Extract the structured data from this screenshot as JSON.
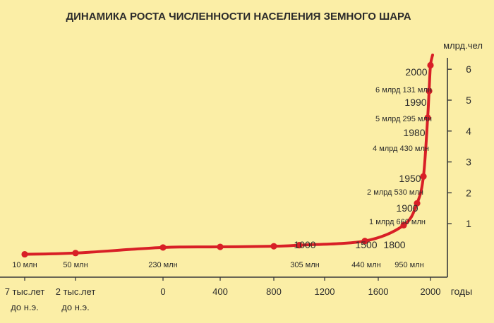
{
  "chart_data": {
    "type": "line",
    "title": "ДИНАМИКА РОСТА ЧИСЛЕННОСТИ НАСЕЛЕНИЯ ЗЕМНОГО ШАРА",
    "ylabel": "млрд.чел",
    "xlabel": "годы",
    "ylim": [
      0,
      7
    ],
    "y_ticks": [
      1,
      2,
      3,
      4,
      5,
      6
    ],
    "x_tick_labels": [
      {
        "x": -7000,
        "label": [
          "7 тыс.лет",
          "до н.э."
        ]
      },
      {
        "x": -2000,
        "label": [
          "2 тыс.лет",
          "до н.э."
        ]
      },
      {
        "x": 0,
        "label": [
          "0"
        ]
      },
      {
        "x": 400,
        "label": [
          "400"
        ]
      },
      {
        "x": 800,
        "label": [
          "800"
        ]
      },
      {
        "x": 1200,
        "label": [
          "1200"
        ]
      },
      {
        "x": 1600,
        "label": [
          "1600"
        ]
      },
      {
        "x": 2000,
        "label": [
          "2000"
        ]
      }
    ],
    "series": [
      {
        "color": "#d81f26",
        "points": [
          {
            "x": -7000,
            "y": 0.01
          },
          {
            "x": -2000,
            "y": 0.05
          },
          {
            "x": 0,
            "y": 0.23
          },
          {
            "x": 400,
            "y": 0.25
          },
          {
            "x": 800,
            "y": 0.27
          },
          {
            "x": 1000,
            "y": 0.305
          },
          {
            "x": 1500,
            "y": 0.44
          },
          {
            "x": 1800,
            "y": 0.95
          },
          {
            "x": 1900,
            "y": 1.66
          },
          {
            "x": 1950,
            "y": 2.53
          },
          {
            "x": 1980,
            "y": 4.43
          },
          {
            "x": 1990,
            "y": 5.295
          },
          {
            "x": 2000,
            "y": 6.131
          }
        ]
      }
    ],
    "annotations": [
      {
        "text": "10 млн",
        "x": -7000,
        "y": 0.01,
        "kind": "value"
      },
      {
        "text": "50 млн",
        "x": -2000,
        "y": 0.05,
        "kind": "value"
      },
      {
        "text": "230 млн",
        "x": 0,
        "y": 0.23,
        "kind": "value"
      },
      {
        "text": "305 млн",
        "x": 1000,
        "y": 0.305,
        "kind": "value"
      },
      {
        "text": "440 млн",
        "x": 1500,
        "y": 0.44,
        "kind": "value"
      },
      {
        "text": "950 млн",
        "x": 1800,
        "y": 0.95,
        "kind": "value"
      },
      {
        "text": "1000",
        "x": 1000,
        "y": 0.305,
        "kind": "year"
      },
      {
        "text": "1500",
        "x": 1500,
        "y": 0.44,
        "kind": "year"
      },
      {
        "text": "1800",
        "x": 1800,
        "y": 0.95,
        "kind": "year"
      },
      {
        "text": "1900",
        "x": 1900,
        "y": 1.66,
        "kind": "year"
      },
      {
        "text": "1 млрд 660 млн",
        "x": 1900,
        "y": 1.66,
        "kind": "value"
      },
      {
        "text": "1950",
        "x": 1950,
        "y": 2.53,
        "kind": "year"
      },
      {
        "text": "2 млрд 530 млн",
        "x": 1950,
        "y": 2.53,
        "kind": "value"
      },
      {
        "text": "1980",
        "x": 1980,
        "y": 4.43,
        "kind": "year"
      },
      {
        "text": "4 млрд 430 млн",
        "x": 1980,
        "y": 4.43,
        "kind": "value"
      },
      {
        "text": "1990",
        "x": 1990,
        "y": 5.295,
        "kind": "year"
      },
      {
        "text": "5 млрд 295 млн",
        "x": 1990,
        "y": 5.295,
        "kind": "value"
      },
      {
        "text": "2000",
        "x": 2000,
        "y": 6.131,
        "kind": "year"
      },
      {
        "text": "6 млрд 131 млн",
        "x": 2000,
        "y": 6.131,
        "kind": "value"
      }
    ]
  },
  "colors": {
    "background": "#fbeea6",
    "line": "#d81f26",
    "axis": "#3a3a3a",
    "text": "#2b2b2b"
  }
}
